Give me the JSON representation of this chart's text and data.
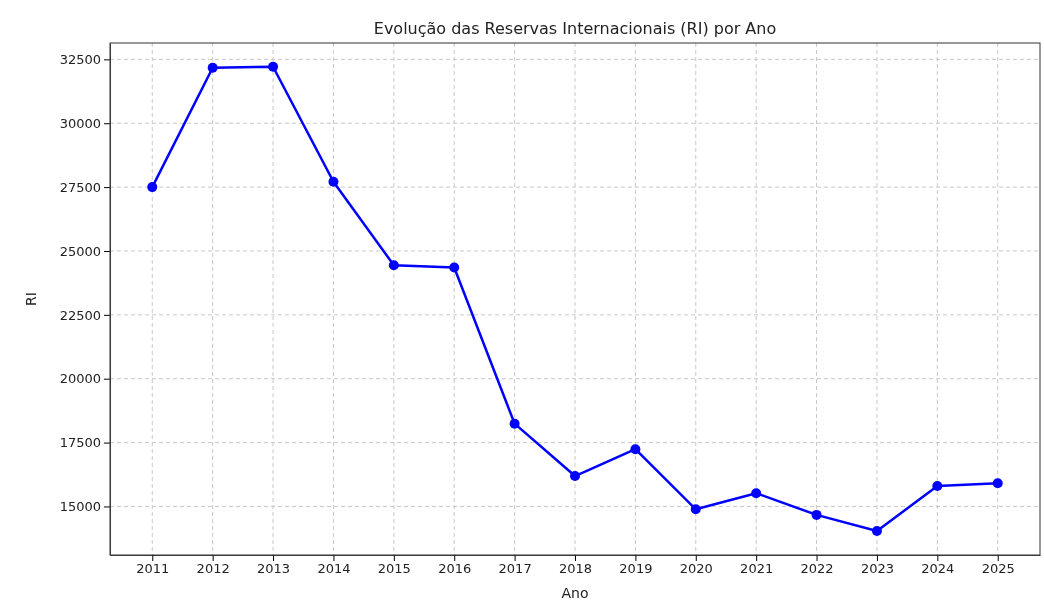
{
  "chart_data": {
    "type": "line",
    "title": "Evolução das Reservas Internacionais (RI) por Ano",
    "xlabel": "Ano",
    "ylabel": "RI",
    "x": [
      2011,
      2012,
      2013,
      2014,
      2015,
      2016,
      2017,
      2018,
      2019,
      2020,
      2021,
      2022,
      2023,
      2024,
      2025
    ],
    "series": [
      {
        "color": "#0000ff",
        "values": [
          27500,
          32170,
          32210,
          27710,
          24440,
          24350,
          18240,
          16190,
          17240,
          14890,
          15520,
          14670,
          14040,
          15800,
          15910
        ]
      }
    ],
    "xlim": [
      2010.3,
      2025.7
    ],
    "xticks": [
      2011,
      2012,
      2013,
      2014,
      2015,
      2016,
      2017,
      2018,
      2019,
      2020,
      2021,
      2022,
      2023,
      2024,
      2025
    ],
    "ylim": [
      13100,
      33140
    ],
    "yticks": [
      15000,
      17500,
      20000,
      22500,
      25000,
      27500,
      30000,
      32500
    ],
    "grid": true,
    "marker": "circle",
    "line_style": "solid"
  }
}
